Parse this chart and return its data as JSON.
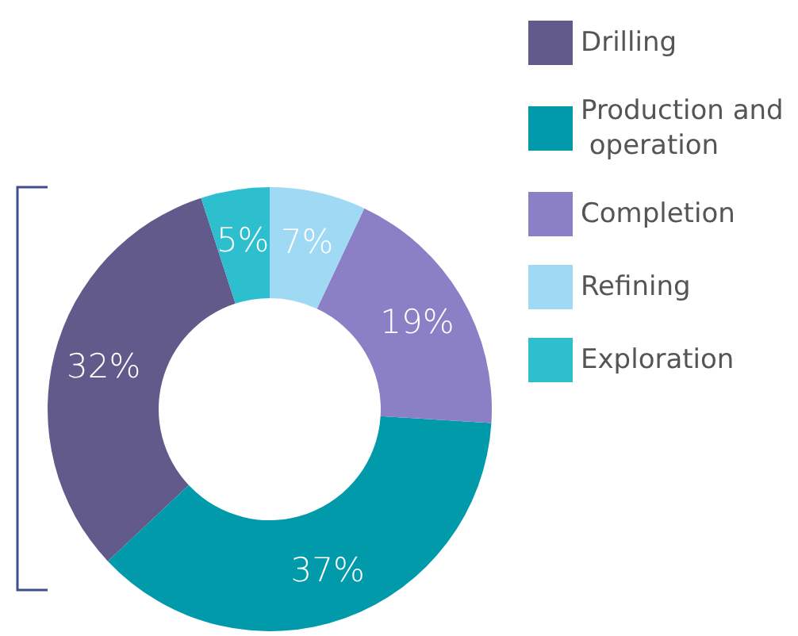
{
  "chart_data": {
    "type": "donut",
    "categories": [
      "Drilling",
      "Production and operation",
      "Completion",
      "Refining",
      "Exploration"
    ],
    "values": [
      32,
      37,
      19,
      7,
      5
    ],
    "colors": [
      "#615a8b",
      "#009aaa",
      "#8b80c6",
      "#9fd9f4",
      "#2ebfcf"
    ],
    "value_labels": [
      "32%",
      "37%",
      "19%",
      "7%",
      "5%"
    ],
    "legend": "top right"
  }
}
